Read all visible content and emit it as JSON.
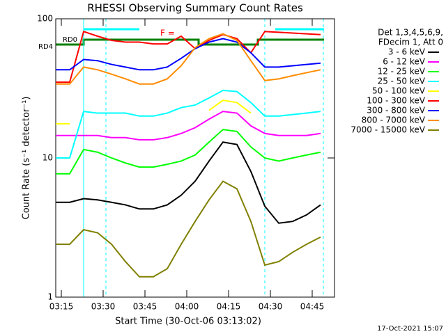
{
  "chart_data": {
    "type": "line",
    "title": "RHESSI Observing Summary Count Rates",
    "xlabel": "Start Time (30-Oct-06 03:13:02)",
    "ylabel": "Count Rate (s⁻¹ detector⁻¹)",
    "legend_header": [
      "Det 1,3,4,5,6,9,",
      "FDecim 1, Att 0"
    ],
    "footer": "17-Oct-2021 15:07",
    "annotations": [
      "RD0",
      "RD4",
      "F ="
    ],
    "log_y": true,
    "ylim": [
      1,
      100
    ],
    "yticks": [
      1,
      10,
      100
    ],
    "xlim": [
      "03:13",
      "04:53"
    ],
    "xticks": [
      "03:15",
      "03:30",
      "03:45",
      "04:00",
      "04:15",
      "04:30",
      "04:45"
    ],
    "x": [
      "03:13",
      "03:18",
      "03:23",
      "03:28",
      "03:33",
      "03:38",
      "03:43",
      "03:48",
      "03:53",
      "03:58",
      "04:03",
      "04:08",
      "04:13",
      "04:18",
      "04:23",
      "04:28",
      "04:33",
      "04:38",
      "04:43",
      "04:48"
    ],
    "series": [
      {
        "name": "3 - 6 keV",
        "color": "#000000",
        "values": [
          4.8,
          4.8,
          5.1,
          5.0,
          4.8,
          4.6,
          4.3,
          4.3,
          4.6,
          5.4,
          6.8,
          9.5,
          13,
          12.5,
          8,
          4.5,
          3.4,
          3.5,
          3.9,
          4.6
        ]
      },
      {
        "name": "6 - 12 keV",
        "color": "#ff00ff",
        "values": [
          14.5,
          14.5,
          14.5,
          14.5,
          14,
          14,
          13.5,
          13.5,
          14,
          15,
          16.5,
          19,
          21.6,
          21,
          17,
          15,
          14.5,
          14.5,
          14.5,
          15
        ]
      },
      {
        "name": "12 - 25 keV",
        "color": "#00ff00",
        "values": [
          7.7,
          7.7,
          11.5,
          11,
          10,
          9.2,
          8.6,
          8.6,
          9,
          9.5,
          10.5,
          13,
          16,
          15.5,
          12,
          10,
          9.5,
          10,
          10.5,
          11
        ]
      },
      {
        "name": "25 - 50 keV",
        "color": "#00ffff",
        "values": [
          10,
          10,
          21.6,
          21,
          21,
          21,
          20,
          20,
          21,
          23,
          24,
          27,
          30.6,
          30,
          25,
          20,
          20,
          20.5,
          21,
          21.6
        ]
      },
      {
        "name": "50 - 100 keV",
        "color": "#ffff00",
        "values": [
          17.6,
          17.6,
          null,
          null,
          null,
          null,
          null,
          null,
          null,
          null,
          null,
          22,
          26,
          25,
          21,
          null,
          null,
          null,
          null,
          null
        ]
      },
      {
        "name": "100 - 300 keV",
        "color": "#ff0000",
        "values": [
          35,
          35,
          81,
          75,
          70,
          68,
          68,
          66,
          66,
          75,
          61,
          70,
          77,
          72,
          57,
          81,
          80,
          79,
          78,
          77
        ]
      },
      {
        "name": "300 - 800 keV",
        "color": "#0000ff",
        "values": [
          43,
          43,
          51,
          50,
          47,
          45,
          43,
          43,
          45,
          52,
          61,
          68,
          72,
          68,
          57,
          45,
          45,
          46,
          47,
          48
        ]
      },
      {
        "name": "800 - 7000 keV",
        "color": "#ff8c00",
        "values": [
          34,
          34,
          45,
          43,
          40,
          37,
          34,
          34,
          37,
          46,
          62,
          72,
          78,
          70,
          50,
          36,
          37,
          39,
          41,
          43
        ]
      },
      {
        "name": "7000 - 15000 keV",
        "color": "#808000",
        "values": [
          2.4,
          2.4,
          3.05,
          2.9,
          2.4,
          1.8,
          1.4,
          1.4,
          1.6,
          2.4,
          3.5,
          5,
          6.8,
          6,
          3.5,
          1.7,
          1.8,
          2.1,
          2.4,
          2.7
        ]
      }
    ]
  }
}
